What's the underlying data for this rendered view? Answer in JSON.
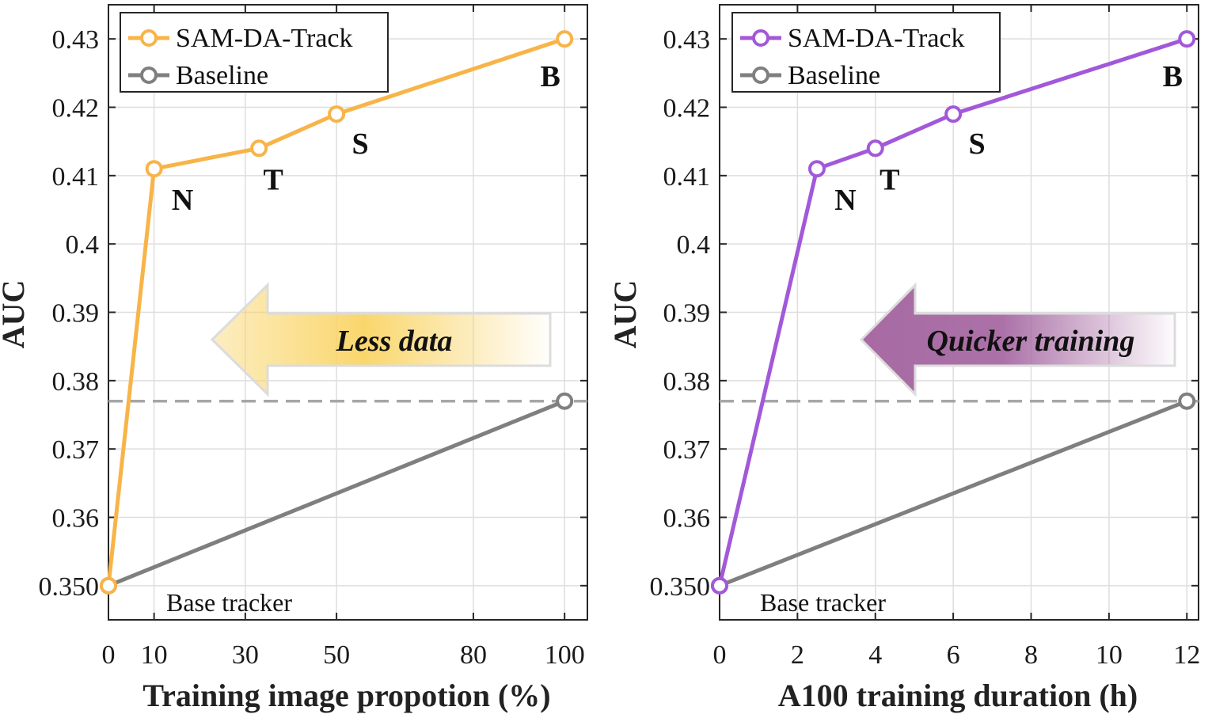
{
  "chart_data": [
    {
      "type": "line",
      "xlabel": "Training image propotion (%)",
      "ylabel": "AUC",
      "xlim": [
        0,
        105
      ],
      "ylim": [
        0.345,
        0.435
      ],
      "xticks": [
        0,
        10,
        30,
        50,
        80,
        100
      ],
      "yticks": [
        0.35,
        0.36,
        0.37,
        0.38,
        0.39,
        0.4,
        0.41,
        0.42,
        0.43
      ],
      "ytick_labels": [
        "0.350",
        "0.36",
        "0.37",
        "0.38",
        "0.39",
        "0.4",
        "0.41",
        "0.42",
        "0.43"
      ],
      "grid": true,
      "legend_position": "top-left",
      "series": [
        {
          "name": "SAM-DA-Track",
          "color": "#f8b448",
          "x": [
            0,
            10,
            33,
            50,
            100
          ],
          "y": [
            0.35,
            0.411,
            0.414,
            0.419,
            0.43
          ]
        },
        {
          "name": "Baseline",
          "color": "#7f7f7f",
          "x": [
            0,
            100
          ],
          "y": [
            0.35,
            0.377
          ]
        }
      ],
      "reference_line": {
        "y": 0.377,
        "color": "#a6a6a6"
      },
      "point_labels": [
        {
          "text": "N",
          "x": 10,
          "y": 0.411
        },
        {
          "text": "T",
          "x": 33,
          "y": 0.414
        },
        {
          "text": "S",
          "x": 50,
          "y": 0.419
        },
        {
          "text": "B",
          "x": 100,
          "y": 0.43
        }
      ],
      "base_label": "Base tracker",
      "arrow_text": "Less data",
      "arrow_color": "#f9d465"
    },
    {
      "type": "line",
      "xlabel": "A100 training duration (h)",
      "ylabel": "AUC",
      "xlim": [
        0,
        12.3
      ],
      "ylim": [
        0.345,
        0.435
      ],
      "xticks": [
        0,
        2,
        4,
        6,
        8,
        10,
        12
      ],
      "yticks": [
        0.35,
        0.36,
        0.37,
        0.38,
        0.39,
        0.4,
        0.41,
        0.42,
        0.43
      ],
      "ytick_labels": [
        "0.350",
        "0.36",
        "0.37",
        "0.38",
        "0.39",
        "0.4",
        "0.41",
        "0.42",
        "0.43"
      ],
      "grid": true,
      "legend_position": "top-left",
      "series": [
        {
          "name": "SAM-DA-Track",
          "color": "#a259d9",
          "x": [
            0,
            2.5,
            4,
            6,
            12
          ],
          "y": [
            0.35,
            0.411,
            0.414,
            0.419,
            0.43
          ]
        },
        {
          "name": "Baseline",
          "color": "#7f7f7f",
          "x": [
            0,
            12
          ],
          "y": [
            0.35,
            0.377
          ]
        }
      ],
      "reference_line": {
        "y": 0.377,
        "color": "#a6a6a6"
      },
      "point_labels": [
        {
          "text": "N",
          "x": 2.5,
          "y": 0.411
        },
        {
          "text": "T",
          "x": 4,
          "y": 0.414
        },
        {
          "text": "S",
          "x": 6,
          "y": 0.419
        },
        {
          "text": "B",
          "x": 12,
          "y": 0.43
        }
      ],
      "base_label": "Base tracker",
      "arrow_text": "Quicker training",
      "arrow_color": "#a76aa3"
    }
  ]
}
